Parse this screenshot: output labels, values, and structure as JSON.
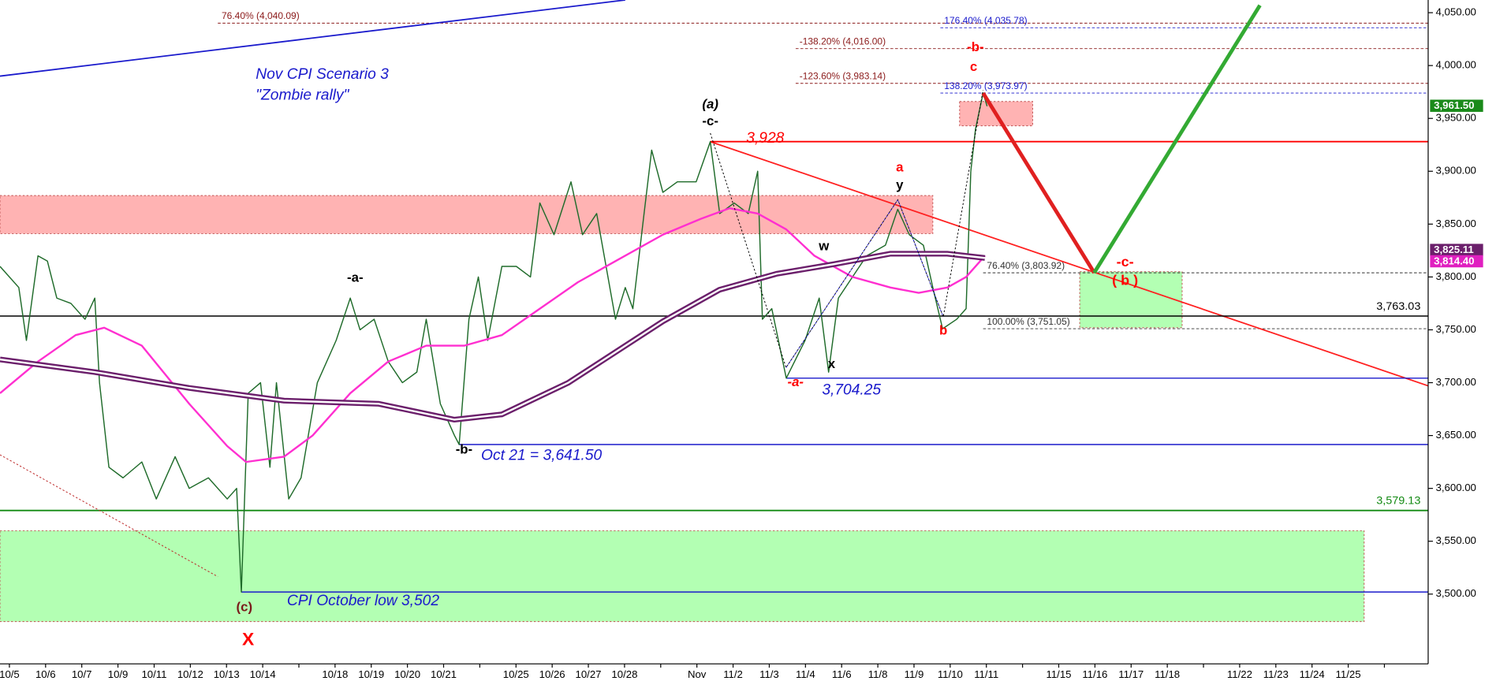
{
  "chart_data": {
    "type": "line",
    "title": "Nov CPI Scenario 3",
    "subtitle": "\"Zombie rally\"",
    "categories": [
      "10/5",
      "10/6",
      "10/7",
      "10/9",
      "10/11",
      "10/12",
      "10/13",
      "10/14",
      null,
      "10/18",
      "10/19",
      "10/20",
      "10/21",
      null,
      "10/25",
      "10/26",
      "10/27",
      "10/28",
      null,
      "Nov",
      "11/2",
      "11/3",
      "11/4",
      "11/6",
      "11/8",
      "11/9",
      "11/10",
      "11/11",
      null,
      "11/15",
      "11/16",
      "11/17",
      "11/18",
      null,
      "11/22",
      "11/23",
      "11/24",
      "11/25",
      null
    ],
    "xlim": [
      -0.26,
      39.21
    ],
    "ylim": [
      3434,
      4062
    ],
    "yticks": [
      {
        "value": 3500,
        "label": "3,500.00"
      },
      {
        "value": 3550,
        "label": "3,550.00"
      },
      {
        "value": 3600,
        "label": "3,600.00"
      },
      {
        "value": 3650,
        "label": "3,650.00"
      },
      {
        "value": 3700,
        "label": "3,700.00"
      },
      {
        "value": 3750,
        "label": "3,750.00"
      },
      {
        "value": 3800,
        "label": "3,800.00"
      },
      {
        "value": 3850,
        "label": "3,850.00"
      },
      {
        "value": 3900,
        "label": "3,900.00"
      },
      {
        "value": 3950,
        "label": "3,950.00"
      },
      {
        "value": 4000,
        "label": "4,000.00"
      },
      {
        "value": 4050,
        "label": "4,050.00"
      }
    ],
    "series": [
      {
        "name": "Price",
        "color": "#1f6b2a",
        "x": [
          -0.26,
          0.26,
          0.47,
          0.79,
          1.05,
          1.31,
          1.7,
          2.09,
          2.36,
          2.49,
          2.75,
          3.14,
          3.66,
          4.06,
          4.58,
          4.97,
          5.5,
          6.02,
          6.28,
          6.41,
          6.6,
          6.94,
          7.2,
          7.38,
          7.72,
          8.06,
          8.51,
          9.03,
          9.42,
          9.69,
          10.08,
          10.47,
          10.86,
          11.26,
          11.52,
          11.91,
          12.3,
          12.43,
          12.7,
          12.96,
          13.22,
          13.61,
          14.01,
          14.4,
          14.66,
          15.05,
          15.52,
          15.84,
          16.23,
          16.75,
          17.02,
          17.23,
          17.54,
          17.75,
          18.06,
          18.46,
          18.98,
          19.37,
          19.63,
          20.03,
          20.42,
          20.68,
          20.81,
          21.07,
          21.47,
          21.99,
          22.38,
          22.64,
          22.91,
          23.3,
          23.69,
          24.21,
          24.55,
          24.87,
          25.26,
          25.52,
          25.79,
          26.18,
          26.44,
          26.57,
          26.7,
          26.91,
          27.02
        ],
        "values": [
          3810,
          3790,
          3740,
          3820,
          3815,
          3780,
          3775,
          3760,
          3780,
          3700,
          3620,
          3610,
          3625,
          3590,
          3630,
          3600,
          3610,
          3590,
          3600,
          3502,
          3690,
          3700,
          3620,
          3700,
          3590,
          3610,
          3700,
          3740,
          3780,
          3750,
          3760,
          3720,
          3700,
          3710,
          3760,
          3680,
          3650,
          3641.5,
          3760,
          3800,
          3740,
          3810,
          3810,
          3800,
          3870,
          3840,
          3890,
          3840,
          3860,
          3760,
          3790,
          3770,
          3860,
          3920,
          3880,
          3890,
          3890,
          3928,
          3860,
          3870,
          3860,
          3900,
          3760,
          3770,
          3704.25,
          3740,
          3780,
          3710,
          3780,
          3800,
          3820,
          3830,
          3864,
          3840,
          3830,
          3790,
          3751,
          3760,
          3770,
          3900,
          3940,
          3973.97,
          3961.5
        ]
      },
      {
        "name": "Moving average",
        "color": "#ff2fd0",
        "x": [
          -0.26,
          0.79,
          1.83,
          2.62,
          3.66,
          4.97,
          6.02,
          6.54,
          7.59,
          8.38,
          9.42,
          10.47,
          11.52,
          12.57,
          13.61,
          14.66,
          15.71,
          16.75,
          18.06,
          19.11,
          19.9,
          20.68,
          21.47,
          22.25,
          23.3,
          24.35,
          25.13,
          25.92,
          26.44,
          26.96
        ],
        "values": [
          3690,
          3720,
          3745,
          3752,
          3735,
          3680,
          3640,
          3625,
          3630,
          3650,
          3690,
          3720,
          3735,
          3735,
          3745,
          3770,
          3795,
          3815,
          3840,
          3855,
          3865,
          3860,
          3845,
          3820,
          3800,
          3790,
          3785,
          3790,
          3800,
          3820
        ]
      },
      {
        "name": "Moving average band",
        "color": "#6b1f6b",
        "x": [
          -0.26,
          2.36,
          4.97,
          7.59,
          10.21,
          12.3,
          13.61,
          15.45,
          18.06,
          19.63,
          21.2,
          22.77,
          24.35,
          25.92,
          26.96
        ],
        "values": [
          3722,
          3710,
          3695,
          3683,
          3680,
          3665,
          3670,
          3700,
          3758,
          3788,
          3803,
          3812,
          3822,
          3822,
          3818
        ]
      }
    ],
    "levels": [
      {
        "value": 3928,
        "label": "3,928",
        "color": "#ff0000",
        "from": 19.37
      },
      {
        "value": 3763.03,
        "label": "3,763.03",
        "color": "#000000",
        "from": -0.26
      },
      {
        "value": 3704.25,
        "label": "3,704.25",
        "color": "#1a1acc",
        "from": 21.47
      },
      {
        "value": 3641.5,
        "label": "Oct 21 = 3,641.50",
        "color": "#1a1acc",
        "from": 12.43
      },
      {
        "value": 3579.13,
        "label": "3,579.13",
        "color": "#138a13",
        "from": -0.26
      },
      {
        "value": 3502,
        "label": "CPI October low 3,502",
        "color": "#1a1acc",
        "from": 6.41
      }
    ],
    "fib_levels": [
      {
        "value": 4040.09,
        "label": "76.40% (4,040.09)",
        "color": "#8b1a1a",
        "from": 5.76
      },
      {
        "value": 4035.78,
        "label": "176.40% (4,035.78)",
        "color": "#1a1acc",
        "from": 25.73
      },
      {
        "value": 4016,
        "label": "-138.20% (4,016.00)",
        "color": "#8b1a1a",
        "from": 21.73
      },
      {
        "value": 3983.14,
        "label": "-123.60% (3,983.14)",
        "color": "#8b1a1a",
        "from": 21.73
      },
      {
        "value": 3973.97,
        "label": "138.20% (3,973.97)",
        "color": "#1a1acc",
        "from": 25.73
      },
      {
        "value": 3803.92,
        "label": "76.40% (3,803.92)",
        "color": "#333333",
        "from": 26.91
      },
      {
        "value": 3751.05,
        "label": "100.00% (3,751.05)",
        "color": "#333333",
        "from": 26.91
      }
    ],
    "zones": [
      {
        "top": 3877,
        "bottom": 3841,
        "from": -0.26,
        "to": 25.52,
        "color": "#ffb3b3"
      },
      {
        "top": 3966,
        "bottom": 3943,
        "from": 26.26,
        "to": 28.28,
        "color": "#ffb3b3"
      },
      {
        "top": 3805,
        "bottom": 3752,
        "from": 29.58,
        "to": 32.41,
        "color": "#b3ffb3"
      },
      {
        "top": 3560,
        "bottom": 3474,
        "from": -0.26,
        "to": 37.44,
        "color": "#b3ffb3"
      }
    ],
    "trendlines": [
      {
        "color": "#1a1acc",
        "x": [
          -0.26,
          17.02
        ],
        "values": [
          3990,
          4062
        ]
      },
      {
        "color": "#ff2020",
        "x": [
          19.37,
          39.21
        ],
        "values": [
          3928,
          3697
        ]
      }
    ],
    "projections": [
      {
        "color": "#e02020",
        "x": [
          26.91,
          29.98
        ],
        "values": [
          3973.97,
          3804
        ]
      },
      {
        "color": "#33aa33",
        "x": [
          29.98,
          34.56
        ],
        "values": [
          3804,
          4057
        ]
      }
    ],
    "price_tags": [
      {
        "value": 3961.5,
        "label": "3,961.50",
        "color": "#1a8a1a"
      },
      {
        "value": 3825.11,
        "label": "3,825.11",
        "color": "#6b1f6b"
      },
      {
        "value": 3814.4,
        "label": "3,814.40",
        "color": "#e020c0"
      }
    ],
    "wave_labels": [
      {
        "text": "(a)",
        "color": "#000000"
      },
      {
        "text": "-c-",
        "color": "#000000"
      },
      {
        "text": "-a-",
        "color": "#000000"
      },
      {
        "text": "-b-",
        "color": "#000000"
      },
      {
        "text": "(c)",
        "color": "#7a1a1a"
      },
      {
        "text": "X",
        "color": "#ff0000"
      },
      {
        "text": "-a-",
        "color": "#ff0000"
      },
      {
        "text": "w",
        "color": "#000000"
      },
      {
        "text": "x",
        "color": "#000000"
      },
      {
        "text": "a",
        "color": "#ff0000"
      },
      {
        "text": "y",
        "color": "#000000"
      },
      {
        "text": "b",
        "color": "#ff0000"
      },
      {
        "text": "c",
        "color": "#ff0000"
      },
      {
        "text": "-b-",
        "color": "#ff0000"
      },
      {
        "text": "-c-",
        "color": "#ff0000"
      },
      {
        "text": "( b )",
        "color": "#ff0000"
      }
    ]
  }
}
